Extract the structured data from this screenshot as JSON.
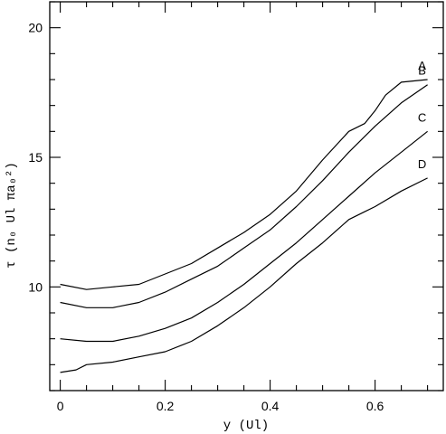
{
  "chart_data": {
    "type": "line",
    "xlabel": "y (Ul)",
    "ylabel": "τ (n₀ Ul πa₀²)",
    "xlim": [
      -0.02,
      0.73
    ],
    "ylim": [
      6.0,
      21.0
    ],
    "x_ticks": [
      0,
      0.2,
      0.4,
      0.6
    ],
    "x_tick_labels": [
      "0",
      "0.2",
      "0.4",
      "0.6"
    ],
    "y_ticks": [
      10,
      15,
      20
    ],
    "y_tick_labels": [
      "10",
      "15",
      "20"
    ],
    "grid": false,
    "series": [
      {
        "name": "A",
        "x": [
          0.0,
          0.05,
          0.1,
          0.15,
          0.2,
          0.25,
          0.3,
          0.35,
          0.4,
          0.45,
          0.5,
          0.55,
          0.58,
          0.6,
          0.62,
          0.65,
          0.7
        ],
        "y": [
          10.1,
          9.9,
          10.0,
          10.1,
          10.5,
          10.9,
          11.5,
          12.1,
          12.8,
          13.7,
          14.9,
          16.0,
          16.3,
          16.8,
          17.4,
          17.9,
          18.0
        ]
      },
      {
        "name": "B",
        "x": [
          0.0,
          0.05,
          0.1,
          0.15,
          0.2,
          0.25,
          0.3,
          0.35,
          0.4,
          0.45,
          0.5,
          0.55,
          0.6,
          0.65,
          0.7
        ],
        "y": [
          9.4,
          9.2,
          9.2,
          9.4,
          9.8,
          10.3,
          10.8,
          11.5,
          12.2,
          13.1,
          14.1,
          15.2,
          16.2,
          17.1,
          17.8
        ]
      },
      {
        "name": "C",
        "x": [
          0.0,
          0.05,
          0.1,
          0.15,
          0.2,
          0.25,
          0.3,
          0.35,
          0.4,
          0.45,
          0.5,
          0.55,
          0.6,
          0.65,
          0.7
        ],
        "y": [
          8.0,
          7.9,
          7.9,
          8.1,
          8.4,
          8.8,
          9.4,
          10.1,
          10.9,
          11.7,
          12.6,
          13.5,
          14.4,
          15.2,
          16.0
        ]
      },
      {
        "name": "D",
        "x": [
          0.0,
          0.03,
          0.05,
          0.1,
          0.15,
          0.2,
          0.25,
          0.3,
          0.35,
          0.4,
          0.45,
          0.5,
          0.55,
          0.58,
          0.6,
          0.65,
          0.7
        ],
        "y": [
          6.7,
          6.8,
          7.0,
          7.1,
          7.3,
          7.5,
          7.9,
          8.5,
          9.2,
          10.0,
          10.9,
          11.7,
          12.6,
          12.9,
          13.1,
          13.7,
          14.2
        ]
      }
    ]
  }
}
